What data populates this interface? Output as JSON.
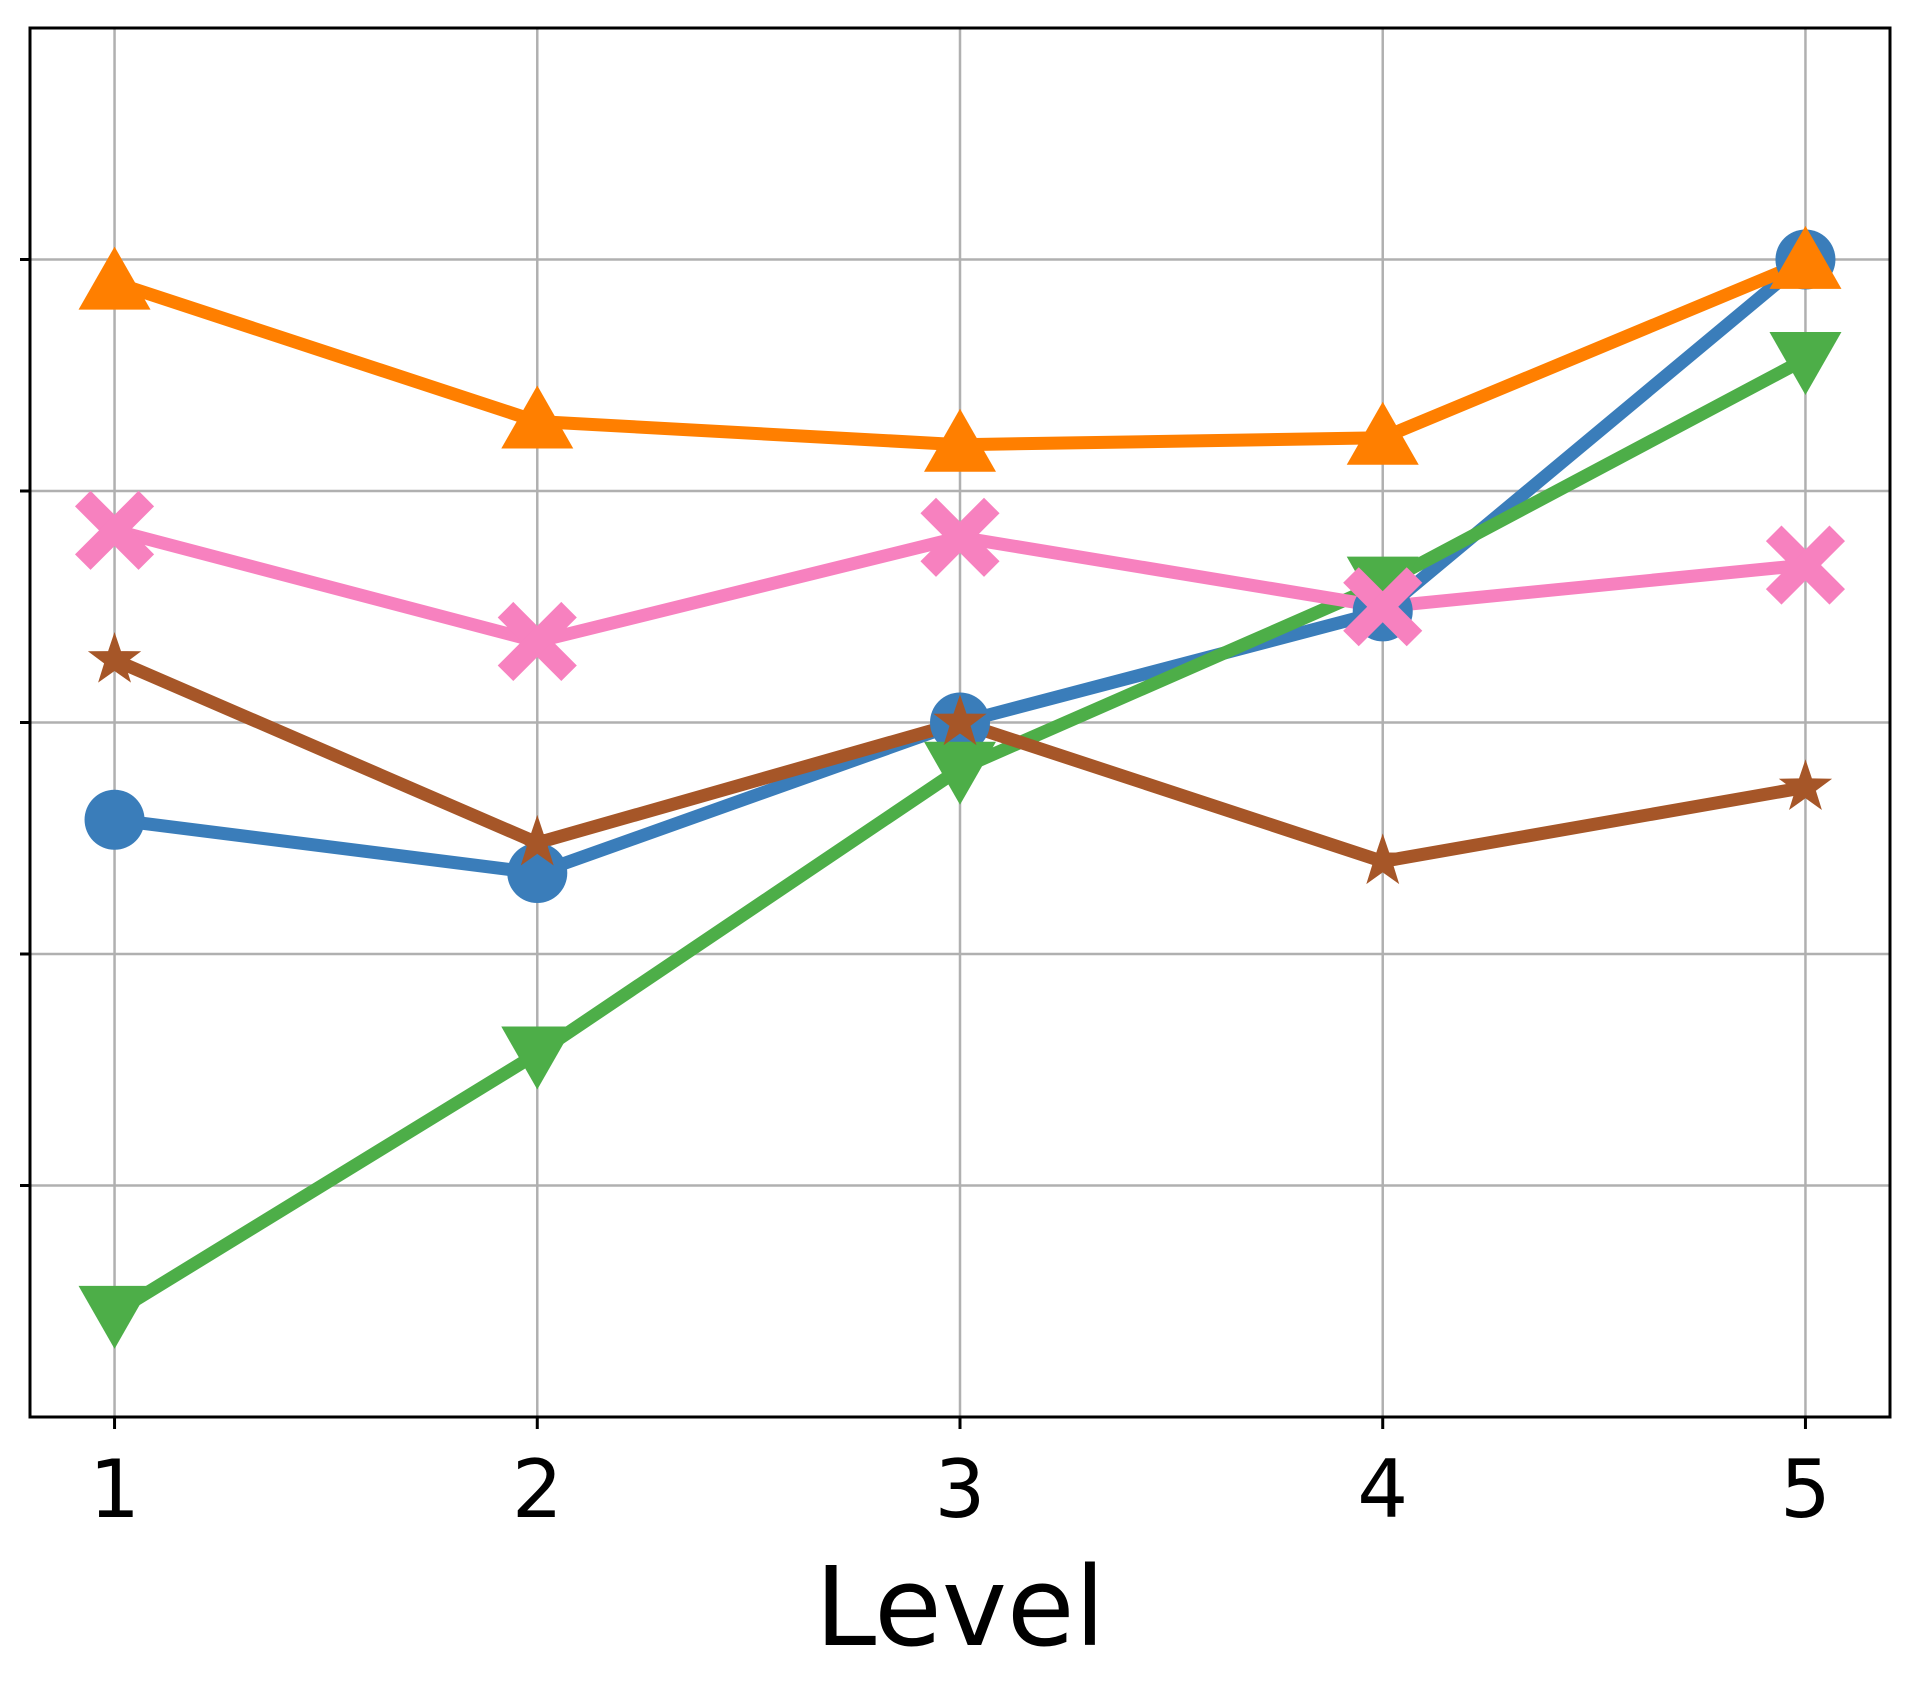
{
  "chart_data": {
    "type": "line",
    "x": [
      1,
      2,
      3,
      4,
      5
    ],
    "xlabel": "Level",
    "ylabel": "",
    "xlim": [
      0.8,
      5.2
    ],
    "ylim": [
      0,
      6
    ],
    "y_gridlines": [
      1,
      2,
      3,
      4,
      5
    ],
    "grid": true,
    "legend": "none",
    "series": [
      {
        "color": "#3a7dba",
        "marker": "circle",
        "values": [
          2.58,
          2.35,
          3.0,
          3.48,
          5.0
        ]
      },
      {
        "color": "#ff7f00",
        "marker": "triangle-up",
        "values": [
          4.9,
          4.3,
          4.2,
          4.23,
          4.99
        ]
      },
      {
        "color": "#4dae48",
        "marker": "triangle-down",
        "values": [
          0.45,
          1.57,
          2.8,
          3.6,
          4.57
        ]
      },
      {
        "color": "#f781bf",
        "marker": "x",
        "values": [
          3.83,
          3.35,
          3.8,
          3.5,
          3.68
        ]
      },
      {
        "color": "#a65628",
        "marker": "star",
        "values": [
          3.27,
          2.48,
          3.0,
          2.4,
          2.72
        ]
      }
    ]
  }
}
